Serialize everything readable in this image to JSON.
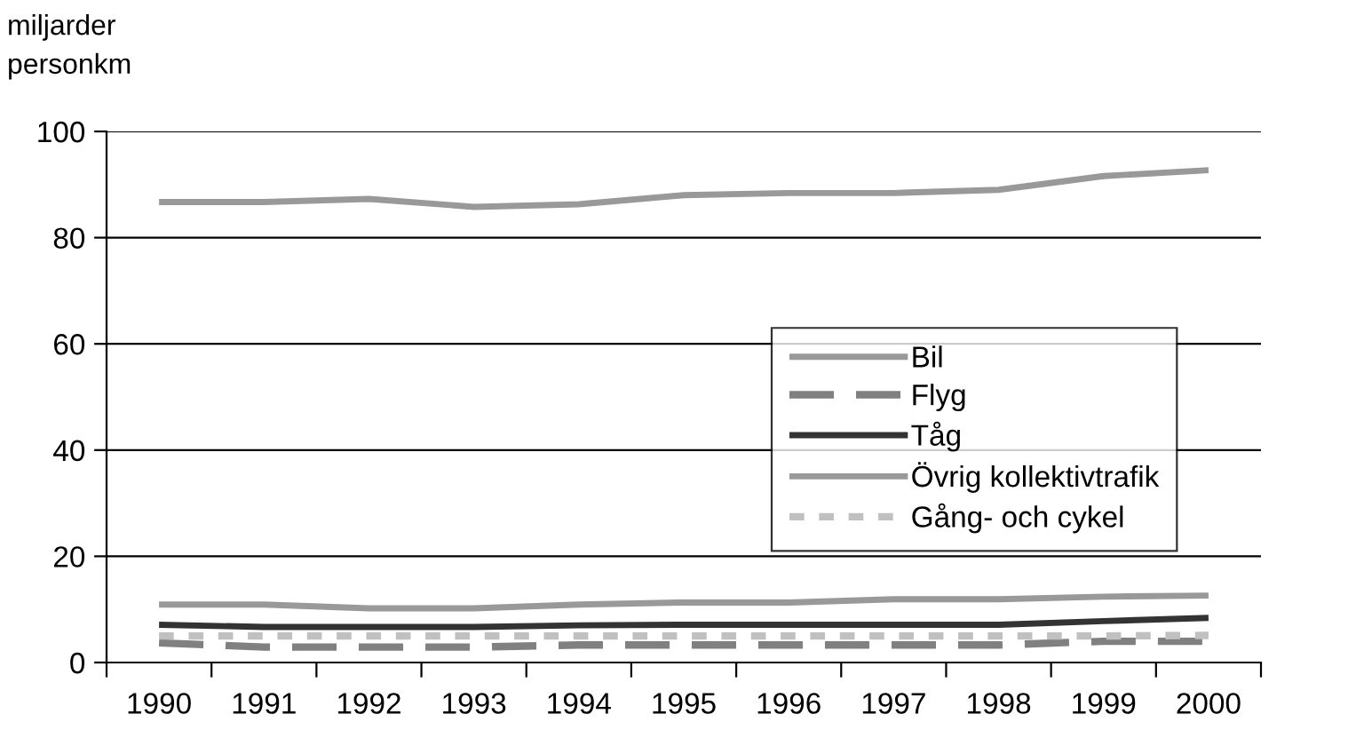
{
  "chart_data": {
    "type": "line",
    "ylabel": "miljarder\npersonkm",
    "categories": [
      "1990",
      "1991",
      "1992",
      "1993",
      "1994",
      "1995",
      "1996",
      "1997",
      "1998",
      "1999",
      "2000"
    ],
    "series": [
      {
        "name": "Bil",
        "color": "#999999",
        "line_style": "solid",
        "values": [
          86.7,
          86.7,
          87.3,
          85.8,
          86.3,
          88.0,
          88.4,
          88.4,
          89.0,
          91.6,
          92.7
        ]
      },
      {
        "name": "Flyg",
        "color": "#808080",
        "line_style": "dashed",
        "values": [
          3.7,
          2.9,
          2.9,
          2.9,
          3.3,
          3.3,
          3.3,
          3.3,
          3.3,
          4.0,
          4.0
        ]
      },
      {
        "name": "Tåg",
        "color": "#333333",
        "line_style": "solid",
        "values": [
          7.1,
          6.7,
          6.7,
          6.7,
          7.0,
          7.1,
          7.1,
          7.1,
          7.1,
          7.8,
          8.4
        ]
      },
      {
        "name": "Övrig kollektivtrafik",
        "color": "#999999",
        "line_style": "solid",
        "values": [
          10.9,
          10.9,
          10.2,
          10.2,
          10.9,
          11.3,
          11.3,
          11.9,
          11.9,
          12.4,
          12.6
        ]
      },
      {
        "name": "Gång- och cykel",
        "color": "#c0c0c0",
        "line_style": "dotted",
        "values": [
          5.0,
          5.0,
          5.0,
          5.0,
          5.0,
          5.0,
          5.0,
          5.0,
          5.0,
          5.0,
          5.1
        ]
      }
    ],
    "ylim": [
      0,
      100
    ],
    "yticks": [
      0,
      20,
      40,
      60,
      80,
      100
    ],
    "grid": "y",
    "legend": "right",
    "marker": "none"
  }
}
